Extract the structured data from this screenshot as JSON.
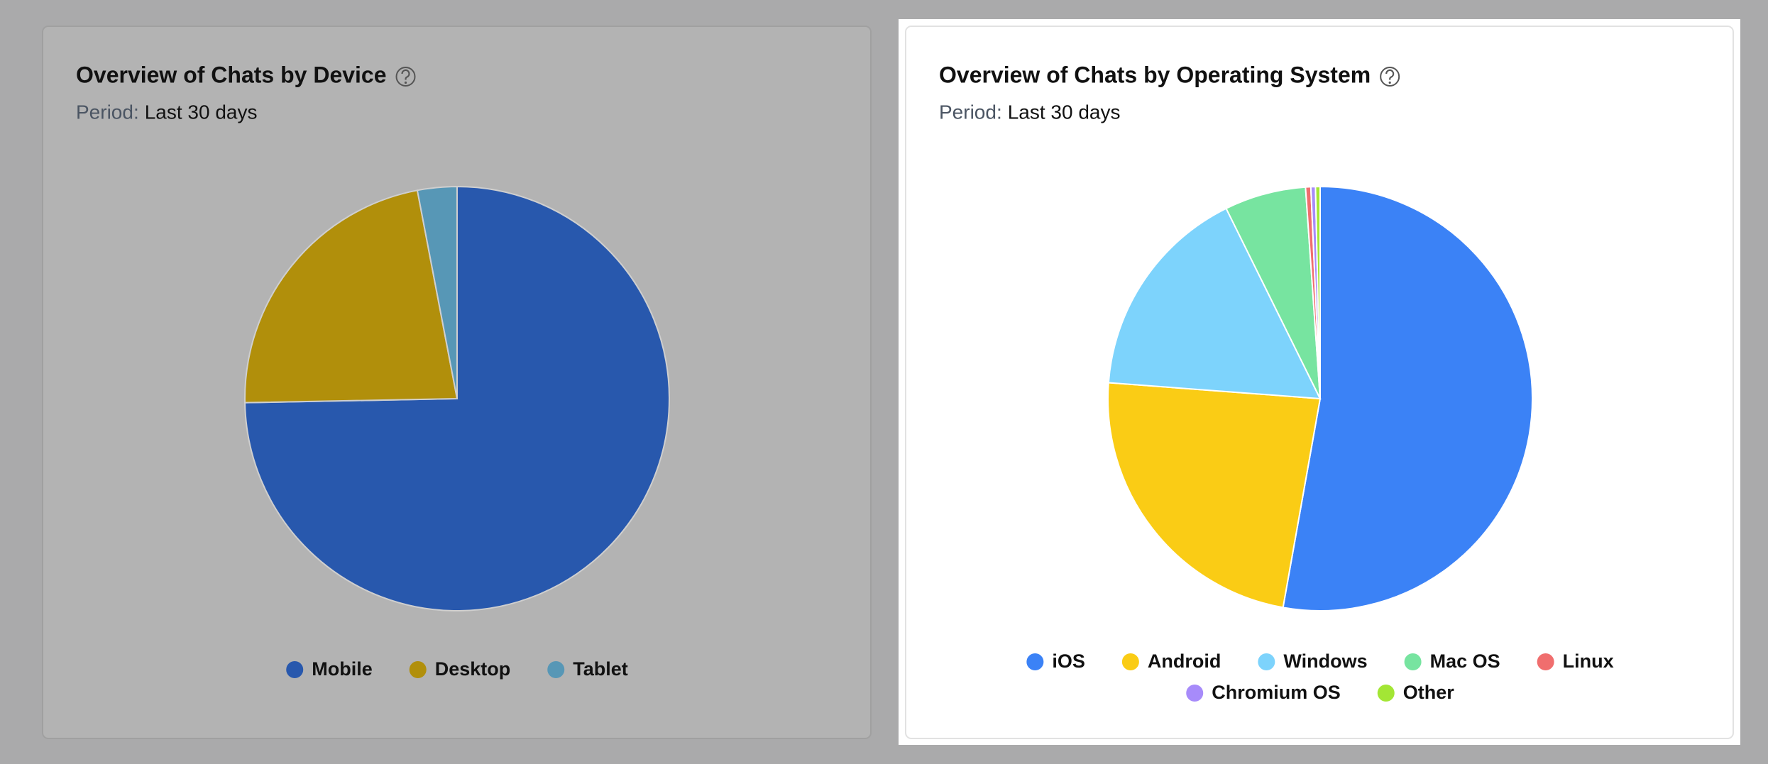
{
  "chart_data": [
    {
      "type": "pie",
      "title": "Overview of Chats by Device",
      "period_label": "Period:",
      "period": "Last 30 days",
      "categories": [
        "Mobile",
        "Desktop",
        "Tablet"
      ],
      "values": [
        74.7,
        22.3,
        3.0
      ],
      "colors": [
        "#2858ad",
        "#b18f0b",
        "#5797b6"
      ]
    },
    {
      "type": "pie",
      "title": "Overview of Chats by Operating System",
      "period_label": "Period:",
      "period": "Last 30 days",
      "categories": [
        "iOS",
        "Android",
        "Windows",
        "Mac OS",
        "Linux",
        "Chromium OS",
        "Other"
      ],
      "values": [
        52.8,
        23.4,
        16.5,
        6.2,
        0.4,
        0.35,
        0.35
      ],
      "colors": [
        "#3b82f6",
        "#facc15",
        "#7dd3fc",
        "#77e4a0",
        "#f06e6e",
        "#a78bfa",
        "#a3e635"
      ]
    }
  ]
}
